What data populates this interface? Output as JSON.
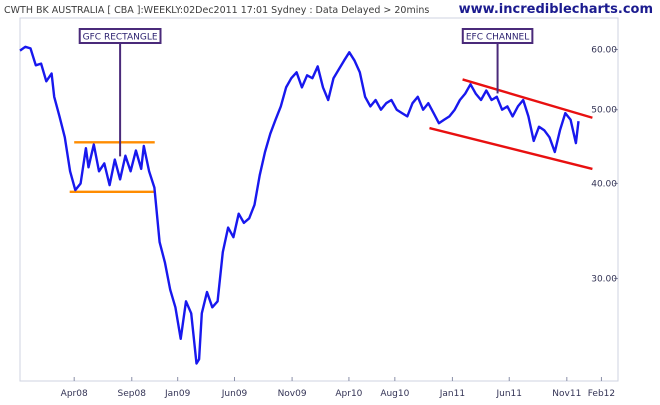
{
  "header": {
    "title": "CWTH BK AUSTRALIA [ CBA ]:WEEKLY:02Dec2011 17:01 Sydney : Data Delayed > 20mins",
    "brand": "www.incrediblecharts.com"
  },
  "chart_data": {
    "type": "line",
    "title": "CWTH BK AUSTRALIA [ CBA ]:WEEKLY:02Dec2011 17:01 Sydney : Data Delayed > 20mins",
    "y_scale": "log",
    "y_range": [
      22,
      66
    ],
    "x_range": [
      "2007-11-09",
      "2012-03-16"
    ],
    "grid": false,
    "x_ticks": [
      {
        "date": "2008-04-01",
        "label": "Apr08"
      },
      {
        "date": "2008-09-01",
        "label": "Sep08"
      },
      {
        "date": "2009-01-01",
        "label": "Jan09"
      },
      {
        "date": "2009-06-01",
        "label": "Jun09"
      },
      {
        "date": "2009-11-01",
        "label": "Nov09"
      },
      {
        "date": "2010-04-01",
        "label": "Apr10"
      },
      {
        "date": "2010-08-01",
        "label": "Aug10"
      },
      {
        "date": "2011-01-01",
        "label": "Jan11"
      },
      {
        "date": "2011-06-01",
        "label": "Jun11"
      },
      {
        "date": "2011-11-01",
        "label": "Nov11"
      },
      {
        "date": "2012-02-01",
        "label": "Feb12"
      }
    ],
    "y_ticks": [
      {
        "value": 30,
        "label": "30.00"
      },
      {
        "value": 40,
        "label": "40.00"
      },
      {
        "value": 50,
        "label": "50.00"
      },
      {
        "value": 60,
        "label": "60.00"
      }
    ],
    "series": [
      {
        "color": "#1818ee",
        "points": [
          [
            "2007-11-09",
            59.8
          ],
          [
            "2007-11-23",
            60.5
          ],
          [
            "2007-12-07",
            60.2
          ],
          [
            "2007-12-21",
            57.2
          ],
          [
            "2008-01-04",
            57.5
          ],
          [
            "2008-01-18",
            54.5
          ],
          [
            "2008-02-01",
            55.8
          ],
          [
            "2008-02-08",
            52.0
          ],
          [
            "2008-02-22",
            49.0
          ],
          [
            "2008-03-07",
            46.0
          ],
          [
            "2008-03-21",
            41.5
          ],
          [
            "2008-04-04",
            39.2
          ],
          [
            "2008-04-18",
            40.0
          ],
          [
            "2008-05-02",
            44.5
          ],
          [
            "2008-05-09",
            42.0
          ],
          [
            "2008-05-23",
            45.0
          ],
          [
            "2008-06-06",
            41.5
          ],
          [
            "2008-06-20",
            42.5
          ],
          [
            "2008-07-04",
            39.8
          ],
          [
            "2008-07-18",
            43.0
          ],
          [
            "2008-08-01",
            40.5
          ],
          [
            "2008-08-15",
            43.5
          ],
          [
            "2008-08-29",
            41.5
          ],
          [
            "2008-09-12",
            44.2
          ],
          [
            "2008-09-26",
            41.8
          ],
          [
            "2008-10-03",
            44.8
          ],
          [
            "2008-10-17",
            41.5
          ],
          [
            "2008-10-31",
            39.5
          ],
          [
            "2008-11-14",
            33.5
          ],
          [
            "2008-11-28",
            31.5
          ],
          [
            "2008-12-12",
            29.0
          ],
          [
            "2008-12-26",
            27.5
          ],
          [
            "2009-01-09",
            25.0
          ],
          [
            "2009-01-23",
            28.0
          ],
          [
            "2009-02-06",
            27.0
          ],
          [
            "2009-02-20",
            23.2
          ],
          [
            "2009-02-27",
            23.5
          ],
          [
            "2009-03-06",
            27.0
          ],
          [
            "2009-03-20",
            28.8
          ],
          [
            "2009-04-03",
            27.5
          ],
          [
            "2009-04-17",
            28.0
          ],
          [
            "2009-05-01",
            32.5
          ],
          [
            "2009-05-15",
            35.0
          ],
          [
            "2009-05-29",
            34.0
          ],
          [
            "2009-06-12",
            36.5
          ],
          [
            "2009-06-26",
            35.5
          ],
          [
            "2009-07-10",
            36.0
          ],
          [
            "2009-07-24",
            37.5
          ],
          [
            "2009-08-07",
            41.0
          ],
          [
            "2009-08-21",
            44.0
          ],
          [
            "2009-09-04",
            46.5
          ],
          [
            "2009-09-18",
            48.5
          ],
          [
            "2009-10-02",
            50.5
          ],
          [
            "2009-10-16",
            53.5
          ],
          [
            "2009-10-30",
            55.0
          ],
          [
            "2009-11-13",
            56.0
          ],
          [
            "2009-11-27",
            53.5
          ],
          [
            "2009-12-11",
            55.5
          ],
          [
            "2009-12-25",
            55.0
          ],
          [
            "2010-01-08",
            57.0
          ],
          [
            "2010-01-22",
            53.5
          ],
          [
            "2010-02-05",
            51.5
          ],
          [
            "2010-02-19",
            55.0
          ],
          [
            "2010-03-05",
            56.5
          ],
          [
            "2010-03-19",
            58.0
          ],
          [
            "2010-04-02",
            59.5
          ],
          [
            "2010-04-16",
            58.0
          ],
          [
            "2010-04-30",
            56.0
          ],
          [
            "2010-05-14",
            52.0
          ],
          [
            "2010-05-28",
            50.5
          ],
          [
            "2010-06-11",
            51.5
          ],
          [
            "2010-06-25",
            50.0
          ],
          [
            "2010-07-09",
            51.0
          ],
          [
            "2010-07-23",
            51.5
          ],
          [
            "2010-08-06",
            50.0
          ],
          [
            "2010-08-20",
            49.5
          ],
          [
            "2010-09-03",
            49.0
          ],
          [
            "2010-09-17",
            51.0
          ],
          [
            "2010-10-01",
            52.0
          ],
          [
            "2010-10-15",
            50.0
          ],
          [
            "2010-10-29",
            51.0
          ],
          [
            "2010-11-12",
            49.5
          ],
          [
            "2010-11-26",
            48.0
          ],
          [
            "2010-12-10",
            48.5
          ],
          [
            "2010-12-24",
            49.0
          ],
          [
            "2011-01-07",
            50.0
          ],
          [
            "2011-01-21",
            51.5
          ],
          [
            "2011-02-04",
            52.5
          ],
          [
            "2011-02-18",
            54.0
          ],
          [
            "2011-03-04",
            52.5
          ],
          [
            "2011-03-18",
            51.5
          ],
          [
            "2011-04-01",
            53.0
          ],
          [
            "2011-04-15",
            51.5
          ],
          [
            "2011-04-29",
            52.0
          ],
          [
            "2011-05-13",
            50.0
          ],
          [
            "2011-05-27",
            50.5
          ],
          [
            "2011-06-10",
            49.0
          ],
          [
            "2011-06-24",
            50.5
          ],
          [
            "2011-07-08",
            51.5
          ],
          [
            "2011-07-22",
            49.0
          ],
          [
            "2011-08-05",
            45.5
          ],
          [
            "2011-08-19",
            47.5
          ],
          [
            "2011-09-02",
            47.0
          ],
          [
            "2011-09-16",
            46.0
          ],
          [
            "2011-09-30",
            44.0
          ],
          [
            "2011-10-14",
            47.0
          ],
          [
            "2011-10-28",
            49.5
          ],
          [
            "2011-11-11",
            48.5
          ],
          [
            "2011-11-25",
            45.2
          ],
          [
            "2011-12-02",
            48.3
          ]
        ]
      }
    ],
    "annotations": [
      {
        "label": "GFC RECTANGLE",
        "color": "#ff8c00",
        "label_anchor": {
          "date": "2008-08-01",
          "value": 62.5
        },
        "lines": [
          {
            "from": [
              "2008-04-01",
              45.3
            ],
            "to": [
              "2008-11-01",
              45.3
            ]
          },
          {
            "from": [
              "2008-03-20",
              39.0
            ],
            "to": [
              "2008-11-01",
              39.0
            ]
          }
        ]
      },
      {
        "label": "EFC CHANNEL",
        "color": "#e81010",
        "label_anchor": {
          "date": "2011-05-01",
          "value": 62.5
        },
        "lines": [
          {
            "from": [
              "2011-01-28",
              54.8
            ],
            "to": [
              "2012-01-08",
              48.8
            ]
          },
          {
            "from": [
              "2010-11-01",
              47.3
            ],
            "to": [
              "2012-01-08",
              41.8
            ]
          }
        ]
      }
    ]
  }
}
